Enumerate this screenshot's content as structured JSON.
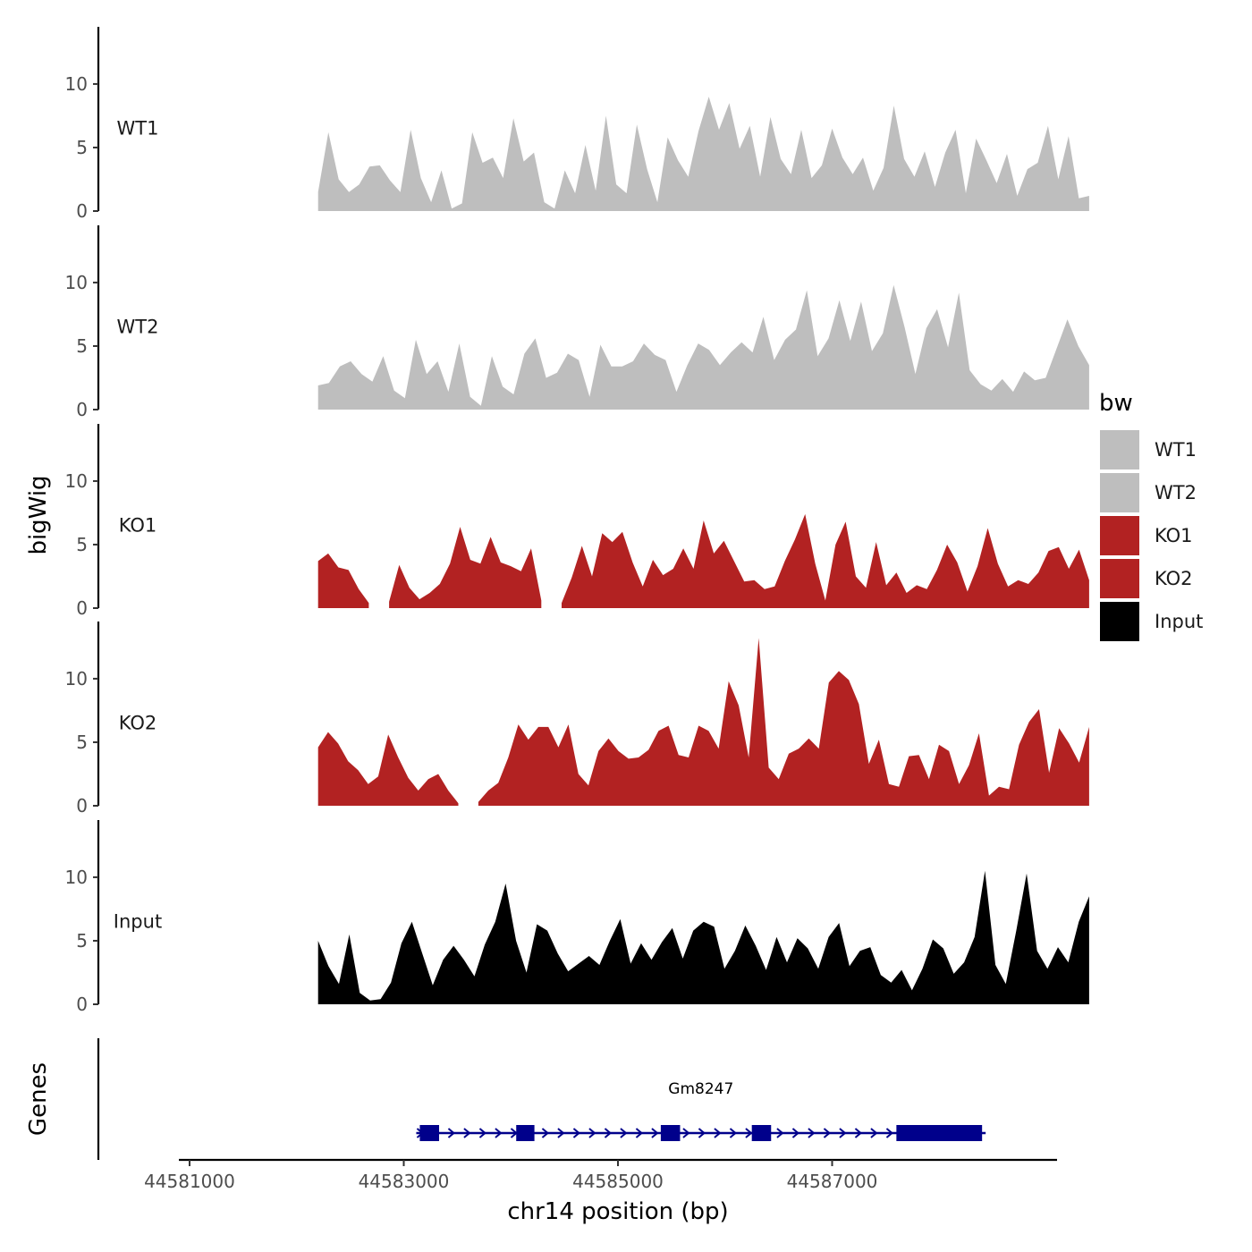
{
  "chart_data": {
    "type": "area",
    "title": "",
    "xlabel": "chr14 position (bp)",
    "ylabel": "bigWig",
    "genes_label": "Genes",
    "legend_title": "bw",
    "xlim": [
      44580900,
      44589100
    ],
    "ylim": [
      0,
      14.5
    ],
    "x_ticks": [
      44581000,
      44583000,
      44585000,
      44587000
    ],
    "x_tick_labels": [
      "44581000",
      "44583000",
      "44585000",
      "44587000"
    ],
    "y_ticks": [
      0,
      5,
      10
    ],
    "y_tick_labels": [
      "0",
      "5",
      "10"
    ],
    "data_x_range": [
      44582200,
      44589400
    ],
    "series": [
      {
        "name": "WT1",
        "color": "#bebebe",
        "values": [
          1.5,
          6.2,
          2.5,
          1.5,
          2.1,
          3.5,
          3.6,
          2.4,
          1.5,
          6.4,
          2.6,
          0.7,
          3.2,
          0.2,
          0.6,
          6.2,
          3.8,
          4.2,
          2.6,
          7.3,
          3.9,
          4.6,
          0.7,
          0.2,
          3.2,
          1.4,
          5.2,
          1.6,
          7.5,
          2.1,
          1.4,
          6.8,
          3.3,
          0.7,
          5.8,
          4.0,
          2.7,
          6.3,
          9.0,
          6.4,
          8.5,
          4.9,
          6.7,
          2.7,
          7.4,
          4.1,
          2.9,
          6.4,
          2.6,
          3.6,
          6.5,
          4.2,
          2.9,
          4.2,
          1.6,
          3.4,
          8.3,
          4.1,
          2.7,
          4.7,
          1.9,
          4.6,
          6.4,
          1.4,
          5.7,
          4.0,
          2.2,
          4.5,
          1.2,
          3.3,
          3.8,
          6.7,
          2.5,
          5.9,
          1.0,
          1.2
        ]
      },
      {
        "name": "WT2",
        "color": "#bebebe",
        "values": [
          1.9,
          2.1,
          3.4,
          3.8,
          2.8,
          2.2,
          4.2,
          1.5,
          0.9,
          5.5,
          2.8,
          3.8,
          1.4,
          5.2,
          1.0,
          0.3,
          4.2,
          1.8,
          1.2,
          4.4,
          5.6,
          2.5,
          2.9,
          4.4,
          3.9,
          1.0,
          5.1,
          3.4,
          3.4,
          3.8,
          5.2,
          4.3,
          3.9,
          1.4,
          3.5,
          5.2,
          4.7,
          3.5,
          4.5,
          5.3,
          4.5,
          7.3,
          3.9,
          5.5,
          6.3,
          9.4,
          4.2,
          5.6,
          8.6,
          5.4,
          8.5,
          4.6,
          6.0,
          9.8,
          6.5,
          2.8,
          6.4,
          7.9,
          4.9,
          9.2,
          3.1,
          2.0,
          1.5,
          2.4,
          1.4,
          3.0,
          2.3,
          2.5,
          4.8,
          7.1,
          5.0,
          3.5
        ]
      },
      {
        "name": "KO1",
        "color": "#b22222",
        "values": [
          3.7,
          4.3,
          3.2,
          3.0,
          1.5,
          0.4,
          null,
          0.5,
          3.4,
          1.6,
          0.7,
          1.2,
          1.9,
          3.5,
          6.4,
          3.8,
          3.5,
          5.6,
          3.6,
          3.3,
          2.9,
          4.7,
          0.6,
          null,
          0.4,
          2.4,
          4.9,
          2.5,
          5.9,
          5.2,
          6.0,
          3.6,
          1.7,
          3.8,
          2.6,
          3.1,
          4.7,
          3.1,
          6.9,
          4.3,
          5.3,
          3.7,
          2.1,
          2.2,
          1.5,
          1.7,
          3.7,
          5.4,
          7.4,
          3.5,
          0.6,
          5.0,
          6.8,
          2.5,
          1.6,
          5.2,
          1.8,
          2.8,
          1.2,
          1.8,
          1.5,
          3.0,
          5.0,
          3.6,
          1.3,
          3.3,
          6.3,
          3.5,
          1.7,
          2.2,
          1.9,
          2.8,
          4.5,
          4.8,
          3.1,
          4.6,
          2.2
        ]
      },
      {
        "name": "KO2",
        "color": "#b22222",
        "values": [
          4.6,
          5.8,
          4.9,
          3.5,
          2.8,
          1.7,
          2.3,
          5.6,
          3.8,
          2.2,
          1.2,
          2.1,
          2.5,
          1.2,
          0.2,
          null,
          0.3,
          1.2,
          1.8,
          3.8,
          6.4,
          5.2,
          6.2,
          6.2,
          4.6,
          6.4,
          2.5,
          1.6,
          4.3,
          5.3,
          4.3,
          3.7,
          3.8,
          4.4,
          5.9,
          6.3,
          4.0,
          3.8,
          6.3,
          5.9,
          4.5,
          9.8,
          7.9,
          3.8,
          13.2,
          3.0,
          2.1,
          4.1,
          4.5,
          5.3,
          4.5,
          9.7,
          10.6,
          9.9,
          8.0,
          3.3,
          5.2,
          1.7,
          1.5,
          3.9,
          4.0,
          2.1,
          4.8,
          4.3,
          1.7,
          3.2,
          5.7,
          0.8,
          1.5,
          1.3,
          4.8,
          6.6,
          7.6,
          2.6,
          6.1,
          4.9,
          3.4,
          6.2
        ]
      },
      {
        "name": "Input",
        "color": "#000000",
        "values": [
          5.0,
          3.0,
          1.6,
          5.5,
          0.9,
          0.3,
          0.4,
          1.7,
          4.8,
          6.5,
          4.0,
          1.5,
          3.5,
          4.6,
          3.5,
          2.2,
          4.7,
          6.5,
          9.5,
          5.0,
          2.5,
          6.3,
          5.8,
          4.0,
          2.6,
          3.2,
          3.8,
          3.1,
          5.0,
          6.7,
          3.2,
          4.8,
          3.5,
          4.9,
          6.0,
          3.6,
          5.8,
          6.5,
          6.1,
          2.8,
          4.2,
          6.2,
          4.6,
          2.7,
          5.3,
          3.3,
          5.2,
          4.4,
          2.8,
          5.3,
          6.4,
          3.0,
          4.2,
          4.5,
          2.3,
          1.7,
          2.7,
          1.1,
          2.8,
          5.1,
          4.4,
          2.4,
          3.3,
          5.3,
          10.5,
          3.1,
          1.6,
          5.8,
          10.3,
          4.2,
          2.8,
          4.5,
          3.3,
          6.5,
          8.5
        ]
      }
    ],
    "genes": [
      {
        "name": "Gm8247",
        "start": 44583150,
        "end": 44588400,
        "strand": "+",
        "color": "#00008b",
        "exons": [
          [
            44583150,
            44583330
          ],
          [
            44584050,
            44584220
          ],
          [
            44585400,
            44585580
          ],
          [
            44586250,
            44586430
          ],
          [
            44587600,
            44588400
          ]
        ]
      }
    ]
  }
}
